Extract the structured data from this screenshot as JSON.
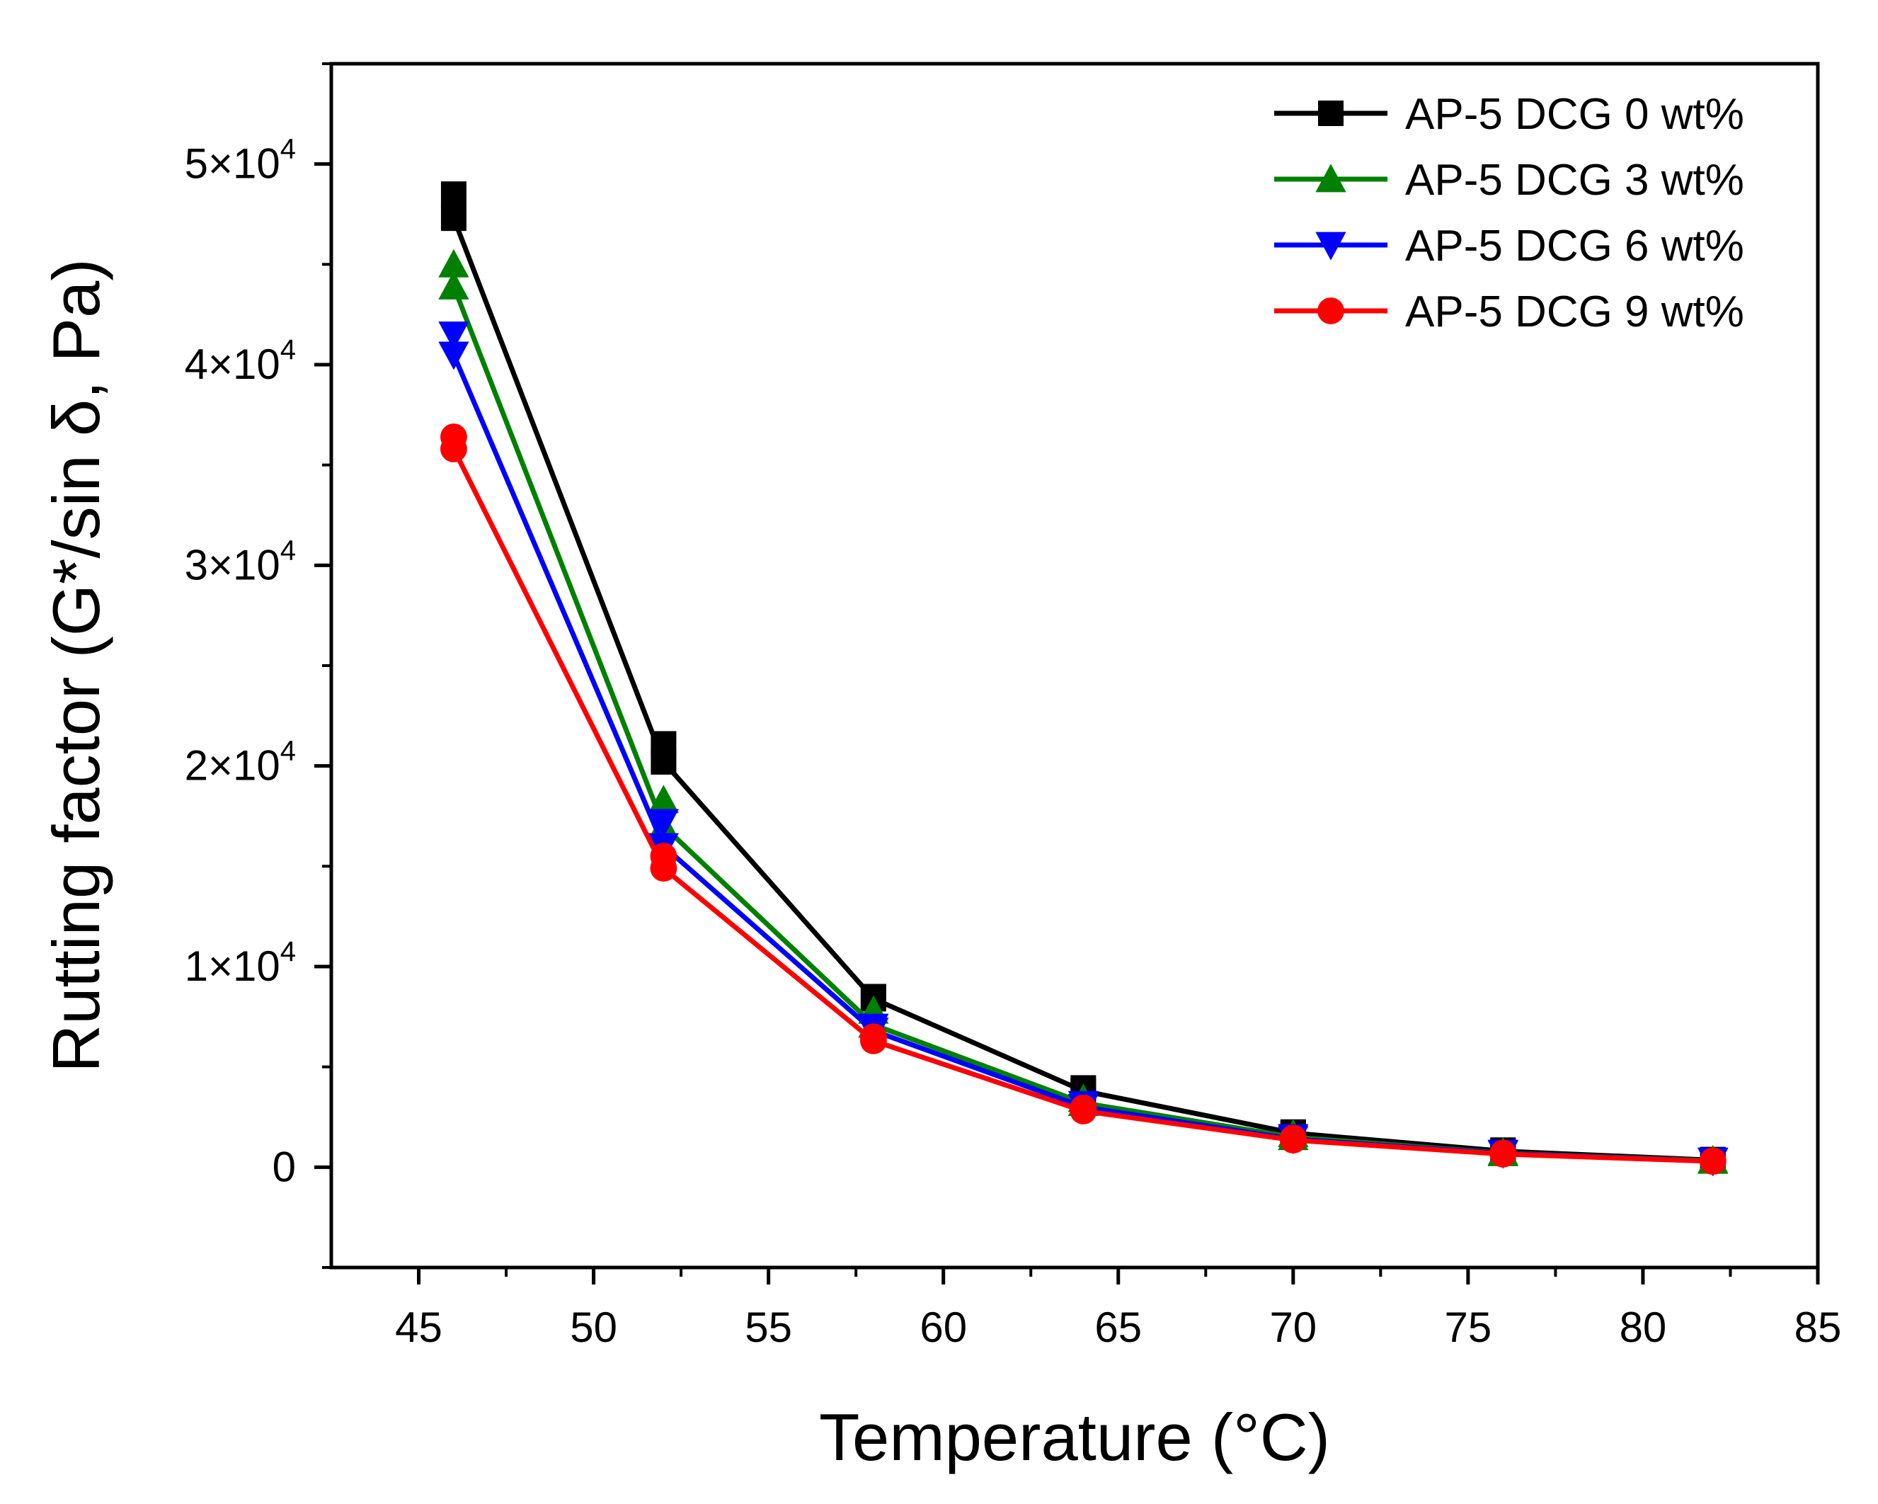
{
  "chart_data": {
    "type": "line",
    "title": "",
    "xlabel": "Temperature (°C)",
    "ylabel": "Rutting factor (G*/sin δ, Pa)",
    "xlim": [
      42.5,
      85
    ],
    "ylim": [
      -5000,
      55000
    ],
    "x_ticks": [
      45,
      50,
      55,
      60,
      65,
      70,
      75,
      80,
      85
    ],
    "y_ticks": [
      {
        "value": 0,
        "mantissa": "0",
        "exponent": ""
      },
      {
        "value": 10000,
        "mantissa": "1×10",
        "exponent": "4"
      },
      {
        "value": 20000,
        "mantissa": "2×10",
        "exponent": "4"
      },
      {
        "value": 30000,
        "mantissa": "3×10",
        "exponent": "4"
      },
      {
        "value": 40000,
        "mantissa": "4×10",
        "exponent": "4"
      },
      {
        "value": 50000,
        "mantissa": "5×10",
        "exponent": "4"
      }
    ],
    "grid": false,
    "legend_position": "top-right",
    "x": [
      46,
      52,
      58,
      64,
      70,
      76,
      82
    ],
    "series": [
      {
        "name": "AP-5 DCG 0 wt%",
        "color": "#000000",
        "marker": "square",
        "values": [
          47300,
          20200,
          8400,
          3800,
          1700,
          800,
          350
        ],
        "duplicate_values": [
          48500,
          21100,
          8500,
          3950,
          1750,
          850,
          380
        ]
      },
      {
        "name": "AP-5 DCG 3 wt%",
        "color": "#008000",
        "marker": "triangle-up",
        "values": [
          43900,
          17000,
          7100,
          3200,
          1500,
          700,
          320
        ],
        "duplicate_values": [
          45000,
          18300,
          7800,
          3400,
          1650,
          750,
          350
        ]
      },
      {
        "name": "AP-5 DCG 6 wt%",
        "color": "#0000ff",
        "marker": "triangle-down",
        "values": [
          40500,
          16000,
          6800,
          3000,
          1400,
          680,
          300
        ],
        "duplicate_values": [
          41500,
          17200,
          7000,
          3150,
          1500,
          720,
          330
        ]
      },
      {
        "name": "AP-5 DCG 9 wt%",
        "color": "#ff0000",
        "marker": "circle",
        "values": [
          35800,
          14900,
          6300,
          2800,
          1350,
          650,
          290
        ],
        "duplicate_values": [
          36400,
          15500,
          6500,
          2950,
          1450,
          700,
          320
        ]
      }
    ]
  }
}
